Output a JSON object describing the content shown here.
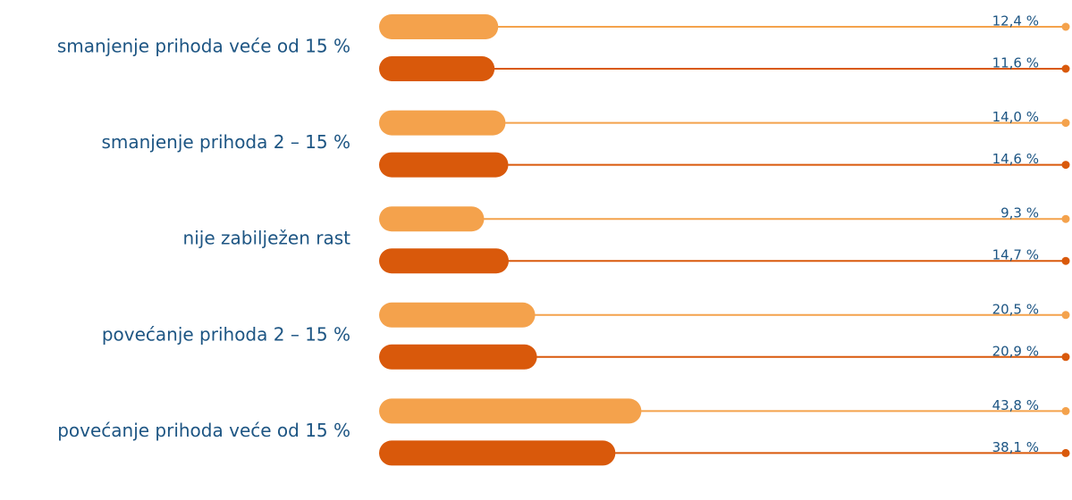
{
  "chart_data": {
    "type": "bar",
    "orientation": "horizontal",
    "categories": [
      "smanjenje prihoda veće od 15 %",
      "smanjenje prihoda 2 – 15 %",
      "nije zabilježen rast",
      "povećanje prihoda 2 – 15 %",
      "povećanje prihoda veće od 15 %"
    ],
    "series": [
      {
        "color": "#f4a24c",
        "values": [
          12.4,
          14.0,
          9.3,
          20.5,
          43.8
        ],
        "value_labels": [
          "12,4 %",
          "14,0 %",
          "9,3 %",
          "20,5 %",
          "43,8 %"
        ]
      },
      {
        "color": "#d9590b",
        "values": [
          11.6,
          14.6,
          14.7,
          20.9,
          38.1
        ],
        "value_labels": [
          "11,6 %",
          "14,6 %",
          "14,7 %",
          "20,9 %",
          "38,1 %"
        ]
      }
    ]
  }
}
